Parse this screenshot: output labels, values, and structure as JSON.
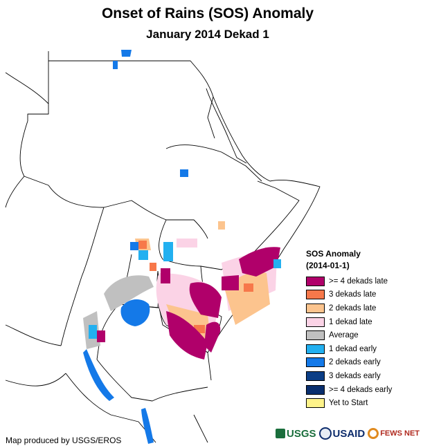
{
  "title": "Onset of Rains (SOS) Anomaly",
  "subtitle": "January 2014 Dekad 1",
  "legend": {
    "title": "SOS Anomaly",
    "date": "(2014-01-1)",
    "items": [
      {
        "label": ">= 4 dekads late",
        "color": "#b0006a"
      },
      {
        "label": "3 dekads late",
        "color": "#f7784a"
      },
      {
        "label": "2 dekads late",
        "color": "#fcc48e"
      },
      {
        "label": "1 dekad late",
        "color": "#fbd3e6"
      },
      {
        "label": "Average",
        "color": "#c0c0c0"
      },
      {
        "label": "1 dekad early",
        "color": "#22b0f0"
      },
      {
        "label": "2 dekads early",
        "color": "#1479e8"
      },
      {
        "label": "3 dekads early",
        "color": "#0b3e86"
      },
      {
        "label": ">= 4 dekads early",
        "color": "#0a2f6e"
      },
      {
        "label": "Yet to Start",
        "color": "#fef38a"
      }
    ]
  },
  "credit": "Map produced by USGS/EROS",
  "logos": {
    "usgs": "USGS",
    "usaid": "USAID",
    "fewsnet": "FEWS NET"
  }
}
